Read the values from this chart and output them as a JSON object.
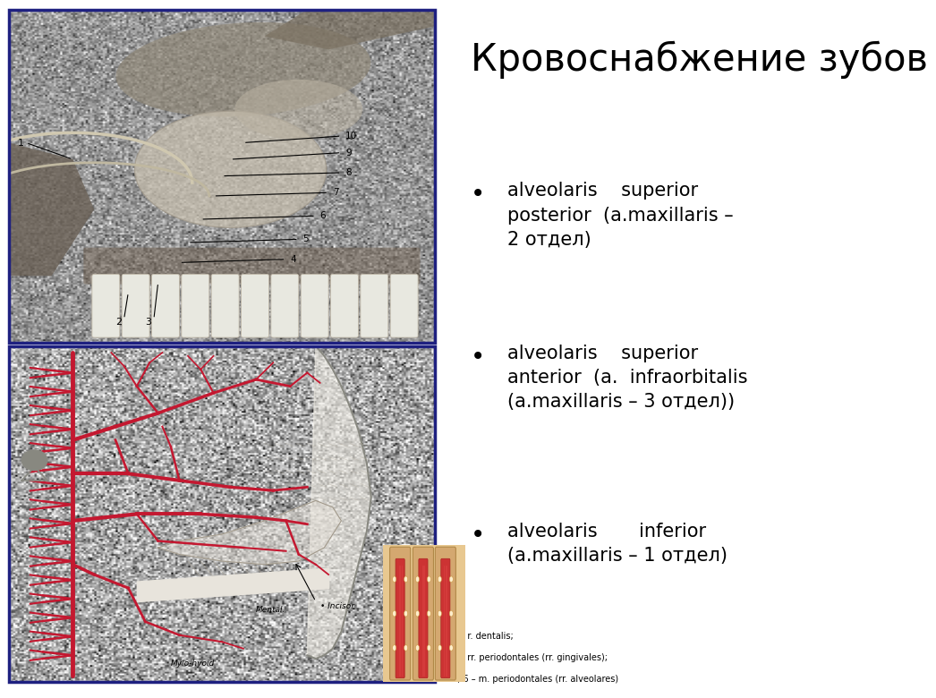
{
  "title": "Кровоснабжение зубов",
  "title_bg": "#FFFFF0",
  "bullet_bg": "#FFFFF0",
  "border_color": "#1E2080",
  "bg_color": "#FFFFFF",
  "bullet_items": [
    "alveolaris    superior\nposterior  (a.maxillaris –\n2 отдел)",
    "alveolaris    superior\nanterior  (a.  infraorbitalis\n(a.maxillaris – 3 отдел))",
    "alveolaris       inferior\n(a.maxillaris – 1 отдел)"
  ],
  "small_text_lines": [
    "2 – r. dentalis;",
    "4 – rr. periodontales (rr. gingivales);",
    "5, 6 – m. periodontales (rr. alveolares)"
  ],
  "vessel_color": "#C41830",
  "upper_img_bg": "#B0A898",
  "lower_img_bg": "#F0EDE8",
  "tooth_bg": "#E8C890",
  "left_border": "#1E2080",
  "font_title_size": 30,
  "font_bullet_size": 15,
  "font_small_size": 7
}
